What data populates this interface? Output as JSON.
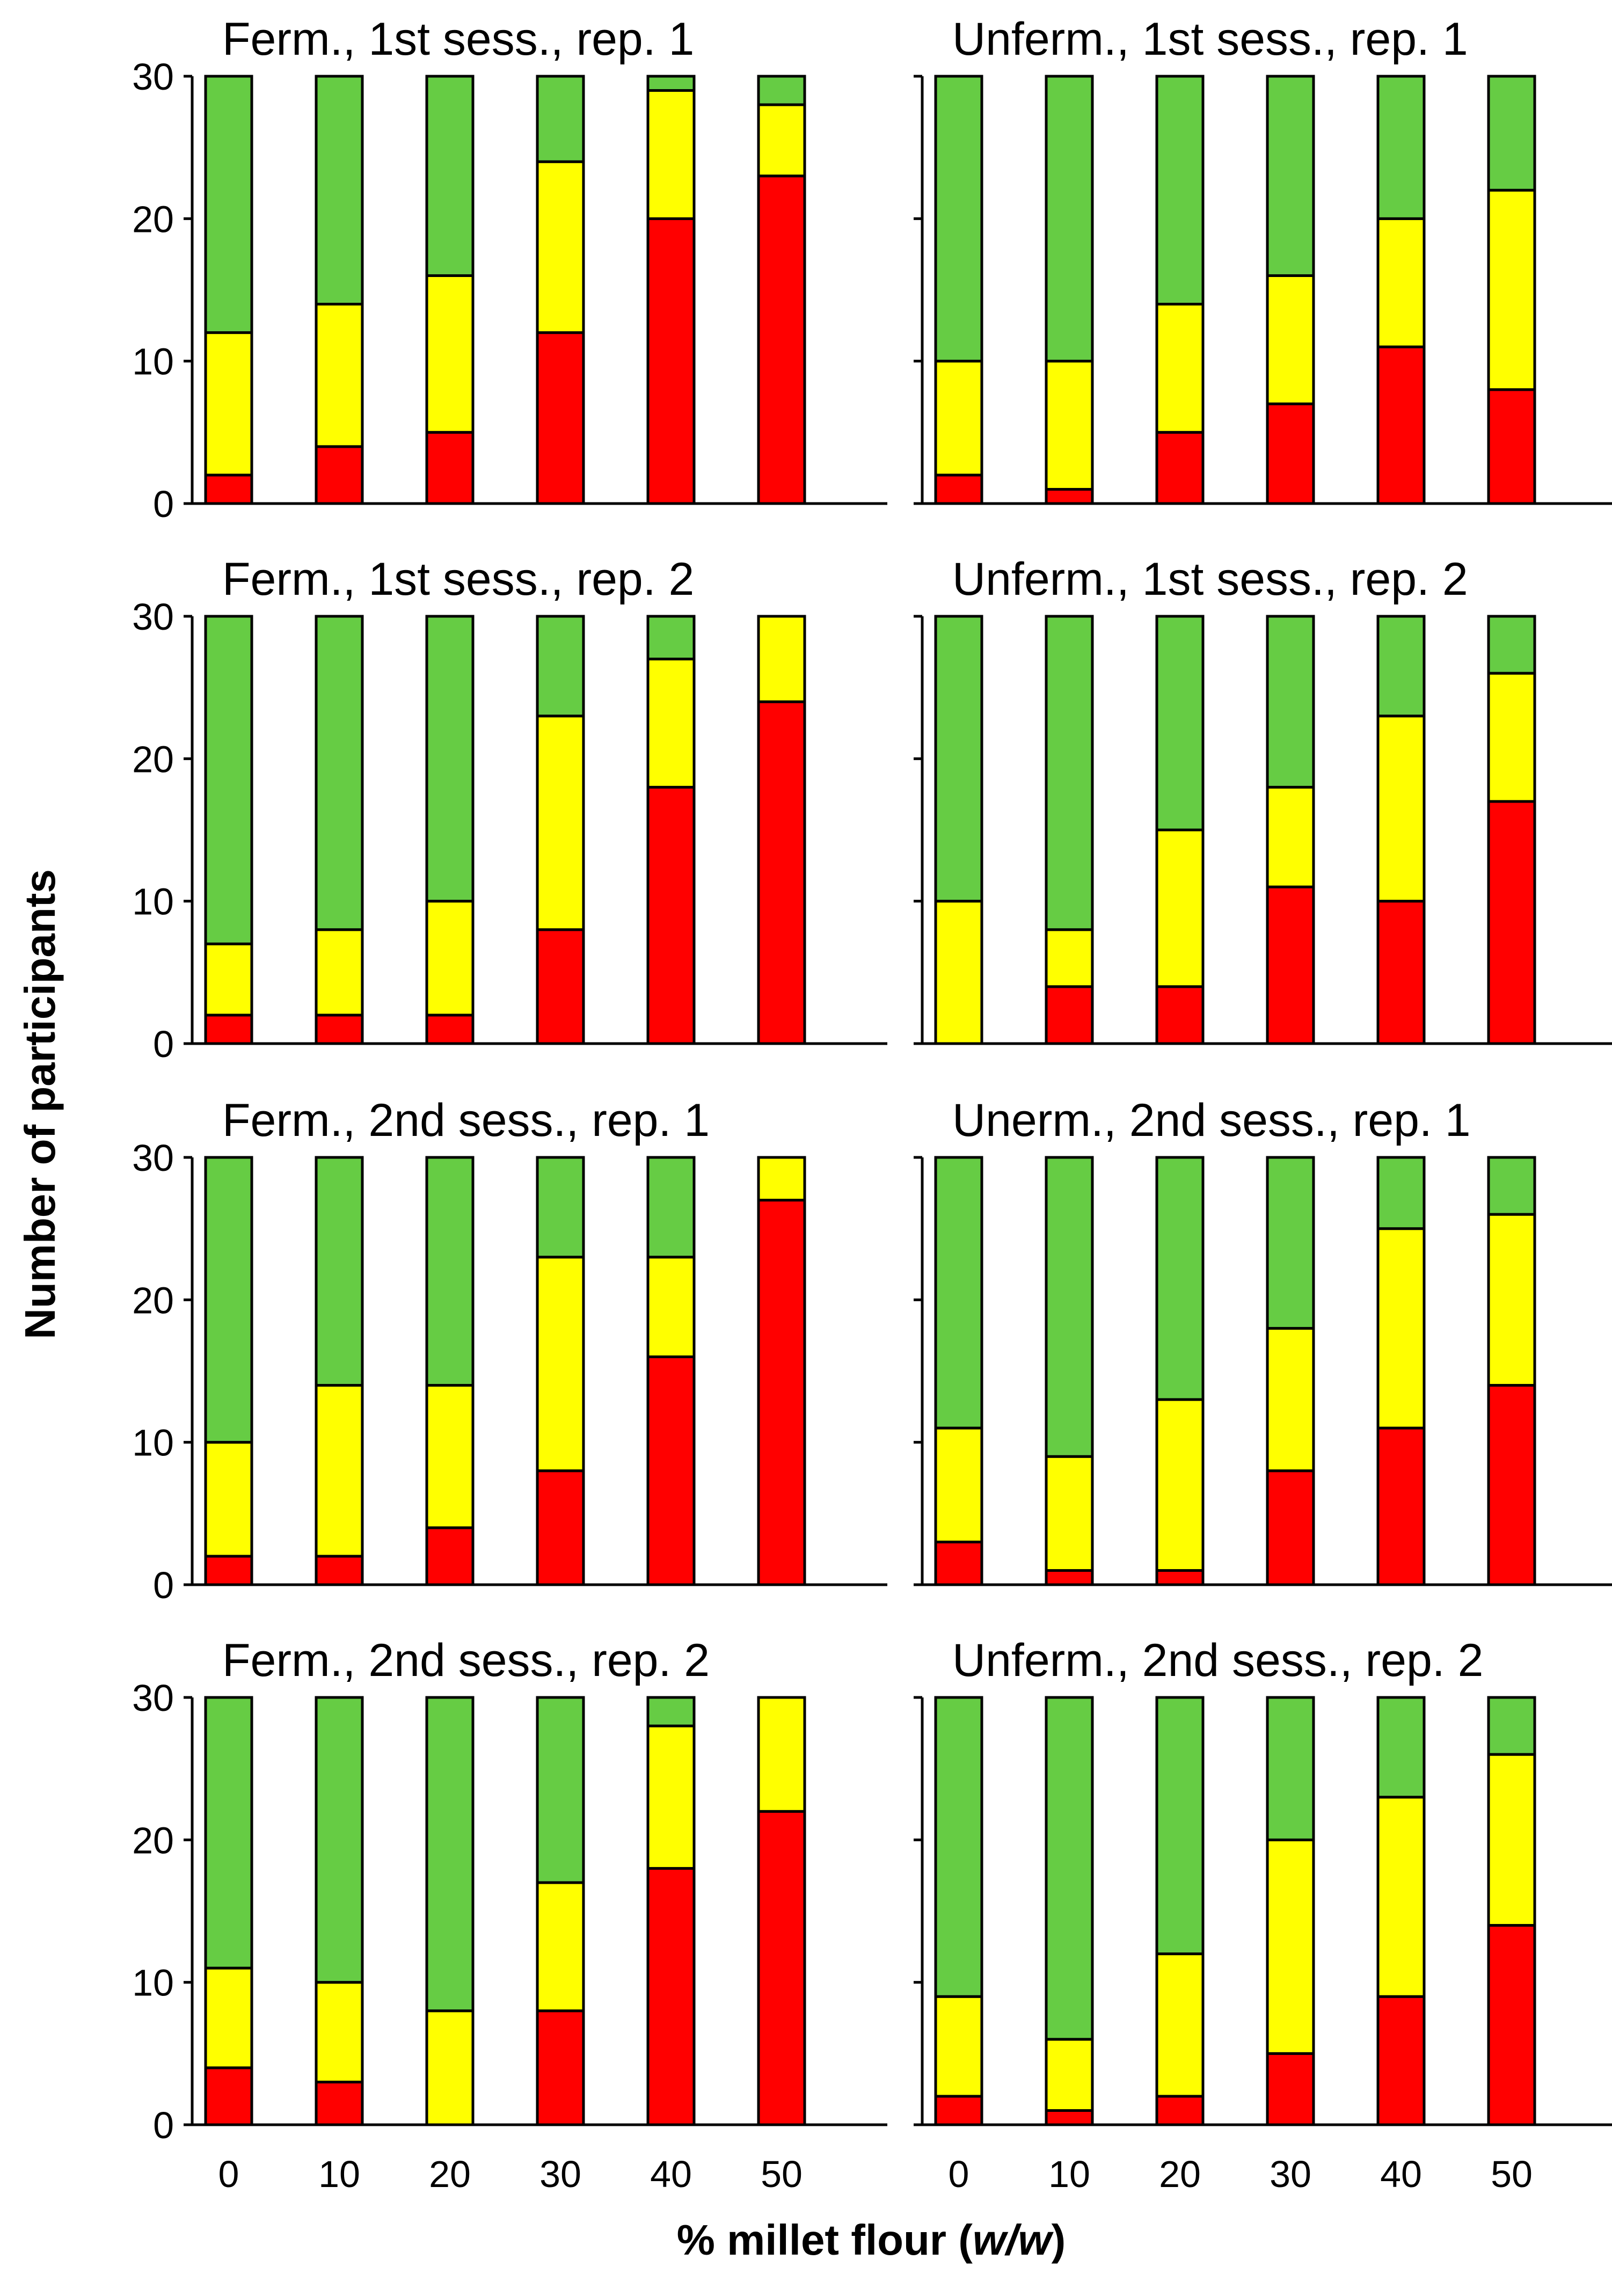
{
  "figure": {
    "ylabel": "Number of participants",
    "xlabel_prefix": "% millet flour (",
    "xlabel_italic": "w/w",
    "xlabel_suffix": ")"
  },
  "colors": {
    "red": "#ff0000",
    "yellow": "#ffff00",
    "green": "#66cc44"
  },
  "chart_data": [
    {
      "type": "bar",
      "stacked": true,
      "title": "Ferm., 1st sess., rep. 1",
      "categories": [
        "0",
        "10",
        "20",
        "30",
        "40",
        "50"
      ],
      "ylim": [
        0,
        30
      ],
      "yticks": [
        0,
        10,
        20,
        30
      ],
      "series": [
        {
          "name": "red",
          "values": [
            2,
            4,
            5,
            12,
            20,
            23
          ]
        },
        {
          "name": "yellow",
          "values": [
            10,
            10,
            11,
            12,
            9,
            5
          ]
        },
        {
          "name": "green",
          "values": [
            18,
            16,
            14,
            6,
            1,
            2
          ]
        }
      ]
    },
    {
      "type": "bar",
      "stacked": true,
      "title": "Unferm., 1st sess., rep. 1",
      "categories": [
        "0",
        "10",
        "20",
        "30",
        "40",
        "50"
      ],
      "ylim": [
        0,
        30
      ],
      "yticks": [
        0,
        10,
        20,
        30
      ],
      "series": [
        {
          "name": "red",
          "values": [
            2,
            1,
            5,
            7,
            11,
            8
          ]
        },
        {
          "name": "yellow",
          "values": [
            8,
            9,
            9,
            9,
            9,
            14
          ]
        },
        {
          "name": "green",
          "values": [
            20,
            20,
            16,
            14,
            10,
            8
          ]
        }
      ]
    },
    {
      "type": "bar",
      "stacked": true,
      "title": "Ferm., 1st sess., rep. 2",
      "categories": [
        "0",
        "10",
        "20",
        "30",
        "40",
        "50"
      ],
      "ylim": [
        0,
        30
      ],
      "yticks": [
        0,
        10,
        20,
        30
      ],
      "series": [
        {
          "name": "red",
          "values": [
            2,
            2,
            2,
            8,
            18,
            24
          ]
        },
        {
          "name": "yellow",
          "values": [
            5,
            6,
            8,
            15,
            9,
            6
          ]
        },
        {
          "name": "green",
          "values": [
            23,
            22,
            20,
            7,
            3,
            0
          ]
        }
      ]
    },
    {
      "type": "bar",
      "stacked": true,
      "title": "Unferm., 1st sess., rep. 2",
      "categories": [
        "0",
        "10",
        "20",
        "30",
        "40",
        "50"
      ],
      "ylim": [
        0,
        30
      ],
      "yticks": [
        0,
        10,
        20,
        30
      ],
      "series": [
        {
          "name": "red",
          "values": [
            0,
            4,
            4,
            11,
            10,
            17
          ]
        },
        {
          "name": "yellow",
          "values": [
            10,
            4,
            11,
            7,
            13,
            9
          ]
        },
        {
          "name": "green",
          "values": [
            20,
            22,
            15,
            12,
            7,
            4
          ]
        }
      ]
    },
    {
      "type": "bar",
      "stacked": true,
      "title": "Ferm., 2nd sess., rep. 1",
      "categories": [
        "0",
        "10",
        "20",
        "30",
        "40",
        "50"
      ],
      "ylim": [
        0,
        30
      ],
      "yticks": [
        0,
        10,
        20,
        30
      ],
      "series": [
        {
          "name": "red",
          "values": [
            2,
            2,
            4,
            8,
            16,
            27
          ]
        },
        {
          "name": "yellow",
          "values": [
            8,
            12,
            10,
            15,
            7,
            3
          ]
        },
        {
          "name": "green",
          "values": [
            20,
            16,
            16,
            7,
            7,
            0
          ]
        }
      ]
    },
    {
      "type": "bar",
      "stacked": true,
      "title": "Unerm., 2nd sess., rep. 1",
      "categories": [
        "0",
        "10",
        "20",
        "30",
        "40",
        "50"
      ],
      "ylim": [
        0,
        30
      ],
      "yticks": [
        0,
        10,
        20,
        30
      ],
      "series": [
        {
          "name": "red",
          "values": [
            3,
            1,
            1,
            8,
            11,
            14
          ]
        },
        {
          "name": "yellow",
          "values": [
            8,
            8,
            12,
            10,
            14,
            12
          ]
        },
        {
          "name": "green",
          "values": [
            19,
            21,
            17,
            12,
            5,
            4
          ]
        }
      ]
    },
    {
      "type": "bar",
      "stacked": true,
      "title": "Ferm., 2nd sess., rep. 2",
      "categories": [
        "0",
        "10",
        "20",
        "30",
        "40",
        "50"
      ],
      "ylim": [
        0,
        30
      ],
      "yticks": [
        0,
        10,
        20,
        30
      ],
      "series": [
        {
          "name": "red",
          "values": [
            4,
            3,
            0,
            8,
            18,
            22
          ]
        },
        {
          "name": "yellow",
          "values": [
            7,
            7,
            8,
            9,
            10,
            8
          ]
        },
        {
          "name": "green",
          "values": [
            19,
            20,
            22,
            13,
            2,
            0
          ]
        }
      ]
    },
    {
      "type": "bar",
      "stacked": true,
      "title": "Unferm., 2nd sess., rep. 2",
      "categories": [
        "0",
        "10",
        "20",
        "30",
        "40",
        "50"
      ],
      "ylim": [
        0,
        30
      ],
      "yticks": [
        0,
        10,
        20,
        30
      ],
      "series": [
        {
          "name": "red",
          "values": [
            2,
            1,
            2,
            5,
            9,
            14
          ]
        },
        {
          "name": "yellow",
          "values": [
            7,
            5,
            10,
            15,
            14,
            12
          ]
        },
        {
          "name": "green",
          "values": [
            21,
            24,
            18,
            10,
            7,
            4
          ]
        }
      ]
    }
  ]
}
